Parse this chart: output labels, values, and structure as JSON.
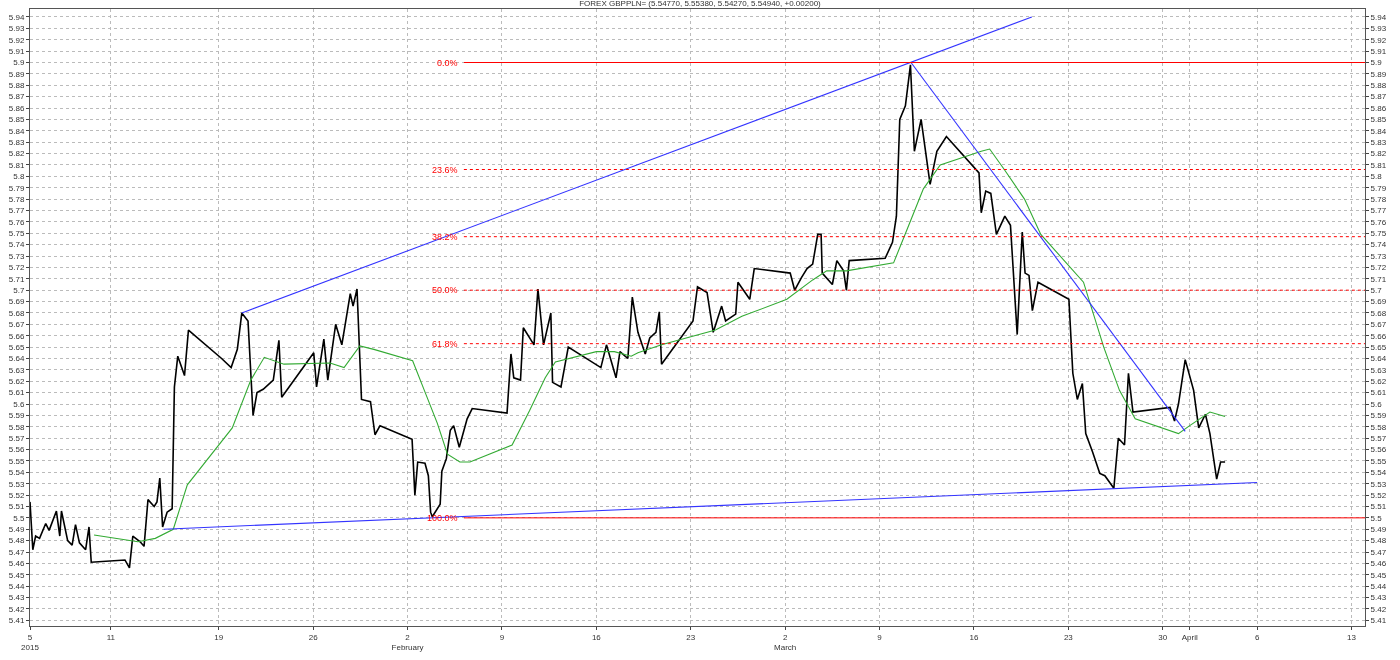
{
  "chart_data": {
    "type": "line",
    "title": "FOREX GBPPLN= (5.54770, 5.55380, 5.54270, 5.54940, +0.00200)",
    "grid": true,
    "xlim": [
      "2015-01-05",
      "2015-04-14"
    ],
    "xticks": [
      {
        "value": "2015-01-05",
        "label": "5\n2015"
      },
      {
        "value": "2015-01-11",
        "label": "11"
      },
      {
        "value": "2015-01-19",
        "label": "19"
      },
      {
        "value": "2015-01-26",
        "label": "26"
      },
      {
        "value": "2015-02-02",
        "label": "2\nFebruary"
      },
      {
        "value": "2015-02-09",
        "label": "9"
      },
      {
        "value": "2015-02-16",
        "label": "16"
      },
      {
        "value": "2015-02-23",
        "label": "23"
      },
      {
        "value": "2015-03-02",
        "label": "2\nMarch"
      },
      {
        "value": "2015-03-09",
        "label": "9"
      },
      {
        "value": "2015-03-16",
        "label": "16"
      },
      {
        "value": "2015-03-23",
        "label": "23"
      },
      {
        "value": "2015-03-30",
        "label": "30"
      },
      {
        "value": "2015-04-01",
        "label": "April"
      },
      {
        "value": "2015-04-06",
        "label": "6"
      },
      {
        "value": "2015-04-13",
        "label": "13"
      }
    ],
    "ylim": [
      5.405,
      5.947
    ],
    "yticks": [
      5.41,
      5.42,
      5.43,
      5.44,
      5.45,
      5.46,
      5.47,
      5.48,
      5.49,
      5.5,
      5.51,
      5.52,
      5.53,
      5.54,
      5.55,
      5.56,
      5.57,
      5.58,
      5.59,
      5.6,
      5.61,
      5.62,
      5.63,
      5.64,
      5.65,
      5.66,
      5.67,
      5.68,
      5.69,
      5.7,
      5.71,
      5.72,
      5.73,
      5.74,
      5.75,
      5.76,
      5.77,
      5.78,
      5.79,
      5.8,
      5.81,
      5.82,
      5.83,
      5.84,
      5.85,
      5.86,
      5.87,
      5.88,
      5.89,
      5.9,
      5.91,
      5.92,
      5.93,
      5.94
    ],
    "y2lim": [
      5.405,
      5.947
    ],
    "y2ticks": [
      5.41,
      5.42,
      5.43,
      5.44,
      5.45,
      5.46,
      5.47,
      5.48,
      5.49,
      5.5,
      5.51,
      5.52,
      5.53,
      5.54,
      5.55,
      5.56,
      5.57,
      5.58,
      5.59,
      5.6,
      5.61,
      5.62,
      5.63,
      5.64,
      5.65,
      5.66,
      5.67,
      5.68,
      5.69,
      5.7,
      5.71,
      5.72,
      5.73,
      5.74,
      5.75,
      5.76,
      5.77,
      5.78,
      5.79,
      5.8,
      5.81,
      5.82,
      5.83,
      5.84,
      5.85,
      5.86,
      5.87,
      5.88,
      5.89,
      5.9,
      5.91,
      5.92,
      5.93,
      5.94
    ],
    "ref_lines": [
      {
        "axis": "y",
        "value": 5.9,
        "color": "#ff0000",
        "line_style": "solid"
      },
      {
        "axis": "y",
        "value": 5.806,
        "color": "#ff0000",
        "line_style": "dotted"
      },
      {
        "axis": "y",
        "value": 5.747,
        "color": "#ff0000",
        "line_style": "dotted"
      },
      {
        "axis": "y",
        "value": 5.7,
        "color": "#ff0000",
        "line_style": "dotted"
      },
      {
        "axis": "y",
        "value": 5.653,
        "color": "#ff0000",
        "line_style": "dotted"
      },
      {
        "axis": "y",
        "value": 5.5,
        "color": "#ff0000",
        "line_style": "solid"
      }
    ],
    "annotations": [
      "0.0%",
      "23.6%",
      "38.2%",
      "50.0%",
      "61.8%",
      "100.0%"
    ],
    "series": [
      {
        "color": "#000000",
        "line_style": "solid",
        "x": [
          "2015-01-05T00:00",
          "2015-01-05T05:00",
          "2015-01-05T10:00",
          "2015-01-05T17:00",
          "2015-01-06T04:00",
          "2015-01-06T10:00",
          "2015-01-06T23:00",
          "2015-01-07T05:00",
          "2015-01-07T08:00",
          "2015-01-07T19:00",
          "2015-01-08T03:00",
          "2015-01-08T09:00",
          "2015-01-08T16:00",
          "2015-01-09T03:00",
          "2015-01-09T09:00",
          "2015-01-09T13:00",
          "2015-01-12T01:00",
          "2015-01-12T09:00",
          "2015-01-12T15:00",
          "2015-01-13T04:00",
          "2015-01-13T11:00",
          "2015-01-13T18:00",
          "2015-01-14T05:00",
          "2015-01-14T10:00",
          "2015-01-14T15:00",
          "2015-01-14T20:00",
          "2015-01-15T04:00",
          "2015-01-15T13:00",
          "2015-01-15T17:00",
          "2015-01-15T23:00",
          "2015-01-16T11:00",
          "2015-01-16T18:00",
          "2015-01-19T05:00",
          "2015-01-19T22:00",
          "2015-01-20T09:00",
          "2015-01-20T17:00",
          "2015-01-21T04:00",
          "2015-01-21T13:00",
          "2015-01-21T20:00",
          "2015-01-22T07:00",
          "2015-01-23T01:00",
          "2015-01-23T11:00",
          "2015-01-23T16:00",
          "2015-01-26T01:00",
          "2015-01-26T06:00",
          "2015-01-26T19:00",
          "2015-01-27T02:00",
          "2015-01-27T16:00",
          "2015-01-28T03:00",
          "2015-01-28T18:00",
          "2015-01-28T23:00",
          "2015-01-29T06:00",
          "2015-01-29T14:00",
          "2015-01-30T06:00",
          "2015-01-30T14:00",
          "2015-01-30T23:00",
          "2015-02-02T08:00",
          "2015-02-02T13:00",
          "2015-02-02T18:00",
          "2015-02-03T07:00",
          "2015-02-03T13:00",
          "2015-02-03T17:00",
          "2015-02-03T20:00",
          "2015-02-04T10:00",
          "2015-02-04T13:00",
          "2015-02-04T21:00",
          "2015-02-05T04:00",
          "2015-02-05T10:00",
          "2015-02-05T20:00",
          "2015-02-06T10:00",
          "2015-02-06T19:00",
          "2015-02-09T09:00",
          "2015-02-09T16:00",
          "2015-02-09T21:00",
          "2015-02-10T09:00",
          "2015-02-10T14:00",
          "2015-02-11T09:00",
          "2015-02-11T16:00",
          "2015-02-12T02:00",
          "2015-02-12T15:00",
          "2015-02-12T18:00",
          "2015-02-13T09:00",
          "2015-02-13T22:00",
          "2015-02-16T08:00",
          "2015-02-16T18:00",
          "2015-02-17T11:00",
          "2015-02-17T18:00",
          "2015-02-18T08:00",
          "2015-02-18T16:00",
          "2015-02-19T02:00",
          "2015-02-19T15:00",
          "2015-02-19T23:00",
          "2015-02-20T10:00",
          "2015-02-20T16:00",
          "2015-02-20T20:00",
          "2015-02-23T04:00",
          "2015-02-23T12:00",
          "2015-02-24T05:00",
          "2015-02-24T16:00",
          "2015-02-25T07:00",
          "2015-02-25T14:00",
          "2015-02-26T08:00",
          "2015-02-26T12:00",
          "2015-02-27T09:00",
          "2015-02-27T17:00",
          "2015-03-02T09:00",
          "2015-03-02T17:00",
          "2015-03-03T05:00",
          "2015-03-03T15:00",
          "2015-03-04T01:00",
          "2015-03-04T10:00",
          "2015-03-04T16:00",
          "2015-03-04T18:00",
          "2015-03-05T12:00",
          "2015-03-05T20:00",
          "2015-03-06T08:00",
          "2015-03-06T13:00",
          "2015-03-06T18:00",
          "2015-03-09T10:00",
          "2015-03-09T23:00",
          "2015-03-10T06:00",
          "2015-03-10T12:00",
          "2015-03-10T22:00",
          "2015-03-11T07:00",
          "2015-03-11T14:00",
          "2015-03-12T02:00",
          "2015-03-12T18:00",
          "2015-03-13T06:00",
          "2015-03-13T23:00",
          "2015-03-16T09:00",
          "2015-03-16T13:00",
          "2015-03-16T21:00",
          "2015-03-17T06:00",
          "2015-03-17T16:00",
          "2015-03-18T07:00",
          "2015-03-18T17:00",
          "2015-03-19T05:00",
          "2015-03-19T14:00",
          "2015-03-19T19:00",
          "2015-03-20T02:00",
          "2015-03-20T08:00",
          "2015-03-20T18:00",
          "2015-03-23T01:00",
          "2015-03-23T08:00",
          "2015-03-23T16:00",
          "2015-03-24T01:00",
          "2015-03-24T07:00",
          "2015-03-24T19:00",
          "2015-03-25T08:00",
          "2015-03-25T17:00",
          "2015-03-26T09:00",
          "2015-03-26T17:00",
          "2015-03-27T04:00",
          "2015-03-27T11:00",
          "2015-03-27T19:00",
          "2015-03-30T13:00",
          "2015-03-30T21:00",
          "2015-03-31T04:00",
          "2015-03-31T16:00",
          "2015-04-01T07:00",
          "2015-04-01T16:00",
          "2015-04-02T04:00",
          "2015-04-02T12:00",
          "2015-04-03T00:00",
          "2015-04-03T07:00",
          "2015-04-03T15:00"
        ],
        "values": [
          5.514,
          5.472,
          5.484,
          5.482,
          5.495,
          5.489,
          5.506,
          5.484,
          5.506,
          5.48,
          5.476,
          5.494,
          5.478,
          5.472,
          5.492,
          5.461,
          5.463,
          5.456,
          5.484,
          5.479,
          5.475,
          5.516,
          5.51,
          5.514,
          5.535,
          5.492,
          5.505,
          5.508,
          5.615,
          5.642,
          5.625,
          5.665,
          5.64,
          5.632,
          5.648,
          5.68,
          5.673,
          5.59,
          5.61,
          5.613,
          5.621,
          5.656,
          5.606,
          5.645,
          5.615,
          5.657,
          5.621,
          5.67,
          5.652,
          5.697,
          5.686,
          5.701,
          5.604,
          5.602,
          5.573,
          5.581,
          5.569,
          5.52,
          5.549,
          5.548,
          5.537,
          5.505,
          5.501,
          5.512,
          5.541,
          5.552,
          5.577,
          5.581,
          5.562,
          5.587,
          5.596,
          5.592,
          5.644,
          5.623,
          5.621,
          5.667,
          5.652,
          5.701,
          5.652,
          5.68,
          5.619,
          5.615,
          5.65,
          5.632,
          5.652,
          5.623,
          5.646,
          5.64,
          5.694,
          5.663,
          5.644,
          5.658,
          5.663,
          5.681,
          5.635,
          5.673,
          5.703,
          5.698,
          5.663,
          5.686,
          5.673,
          5.679,
          5.707,
          5.692,
          5.719,
          5.715,
          5.7,
          5.711,
          5.719,
          5.723,
          5.749,
          5.749,
          5.715,
          5.705,
          5.726,
          5.717,
          5.7,
          5.726,
          5.728,
          5.742,
          5.765,
          5.85,
          5.862,
          5.898,
          5.822,
          5.85,
          5.793,
          5.822,
          5.835,
          5.803,
          5.768,
          5.787,
          5.785,
          5.749,
          5.765,
          5.757,
          5.661,
          5.751,
          5.715,
          5.713,
          5.682,
          5.707,
          5.692,
          5.627,
          5.604,
          5.618,
          5.574,
          5.558,
          5.539,
          5.537,
          5.526,
          5.57,
          5.564,
          5.627,
          5.593,
          5.597,
          5.585,
          5.6,
          5.639,
          5.612,
          5.579,
          5.591,
          5.574,
          5.534,
          5.549,
          5.549
        ]
      },
      {
        "color": "#33aa33",
        "line_style": "solid",
        "x": [
          "2015-01-09T18:00",
          "2015-01-13T00:00",
          "2015-01-14T07:00",
          "2015-01-15T15:00",
          "2015-01-16T16:00",
          "2015-01-20T00:00",
          "2015-01-21T09:00",
          "2015-01-22T09:00",
          "2015-01-23T20:00",
          "2015-01-27T06:00",
          "2015-01-28T07:00",
          "2015-01-29T11:00",
          "2015-01-30T12:00",
          "2015-02-02T09:00",
          "2015-02-03T09:00",
          "2015-02-04T05:00",
          "2015-02-04T23:00",
          "2015-02-05T21:00",
          "2015-02-06T15:00",
          "2015-02-09T18:00",
          "2015-02-11T01:00",
          "2015-02-12T05:00",
          "2015-02-12T23:00",
          "2015-02-16T00:00",
          "2015-02-17T08:00",
          "2015-02-18T14:00",
          "2015-02-19T02:00",
          "2015-02-20T20:00",
          "2015-02-24T20:00",
          "2015-02-26T19:00",
          "2015-03-02T03:00",
          "2015-03-04T01:00",
          "2015-03-05T02:00",
          "2015-03-06T13:00",
          "2015-03-10T01:00",
          "2015-03-11T04:00",
          "2015-03-12T06:00",
          "2015-03-13T12:00",
          "2015-03-16T13:00",
          "2015-03-17T04:00",
          "2015-03-18T06:00",
          "2015-03-19T18:00",
          "2015-03-20T23:00",
          "2015-03-24T03:00",
          "2015-03-25T15:00",
          "2015-03-26T19:00",
          "2015-03-27T23:00",
          "2015-03-31T04:00",
          "2015-04-01T00:00",
          "2015-04-02T12:00",
          "2015-04-03T15:00"
        ],
        "values": [
          5.485,
          5.479,
          5.482,
          5.49,
          5.529,
          5.579,
          5.621,
          5.641,
          5.635,
          5.636,
          5.632,
          5.651,
          5.648,
          5.638,
          5.608,
          5.583,
          5.556,
          5.549,
          5.549,
          5.564,
          5.594,
          5.623,
          5.637,
          5.646,
          5.646,
          5.642,
          5.645,
          5.652,
          5.665,
          5.677,
          5.692,
          5.709,
          5.717,
          5.717,
          5.724,
          5.757,
          5.789,
          5.81,
          5.822,
          5.824,
          5.806,
          5.78,
          5.749,
          5.707,
          5.65,
          5.612,
          5.587,
          5.574,
          5.581,
          5.593,
          5.589
        ]
      },
      {
        "color": "#3333ff",
        "line_style": "solid",
        "x": [
          "2015-01-20T17:00",
          "2015-03-20T07:00"
        ],
        "values": [
          5.68,
          5.94
        ]
      },
      {
        "color": "#3333ff",
        "line_style": "solid",
        "x": [
          "2015-01-14T22:00",
          "2015-04-06T00:00"
        ],
        "values": [
          5.49,
          5.531
        ]
      },
      {
        "color": "#3333ff",
        "line_style": "solid",
        "x": [
          "2015-03-11T08:00",
          "2015-03-31T16:00"
        ],
        "values": [
          5.9,
          5.576
        ]
      }
    ]
  }
}
